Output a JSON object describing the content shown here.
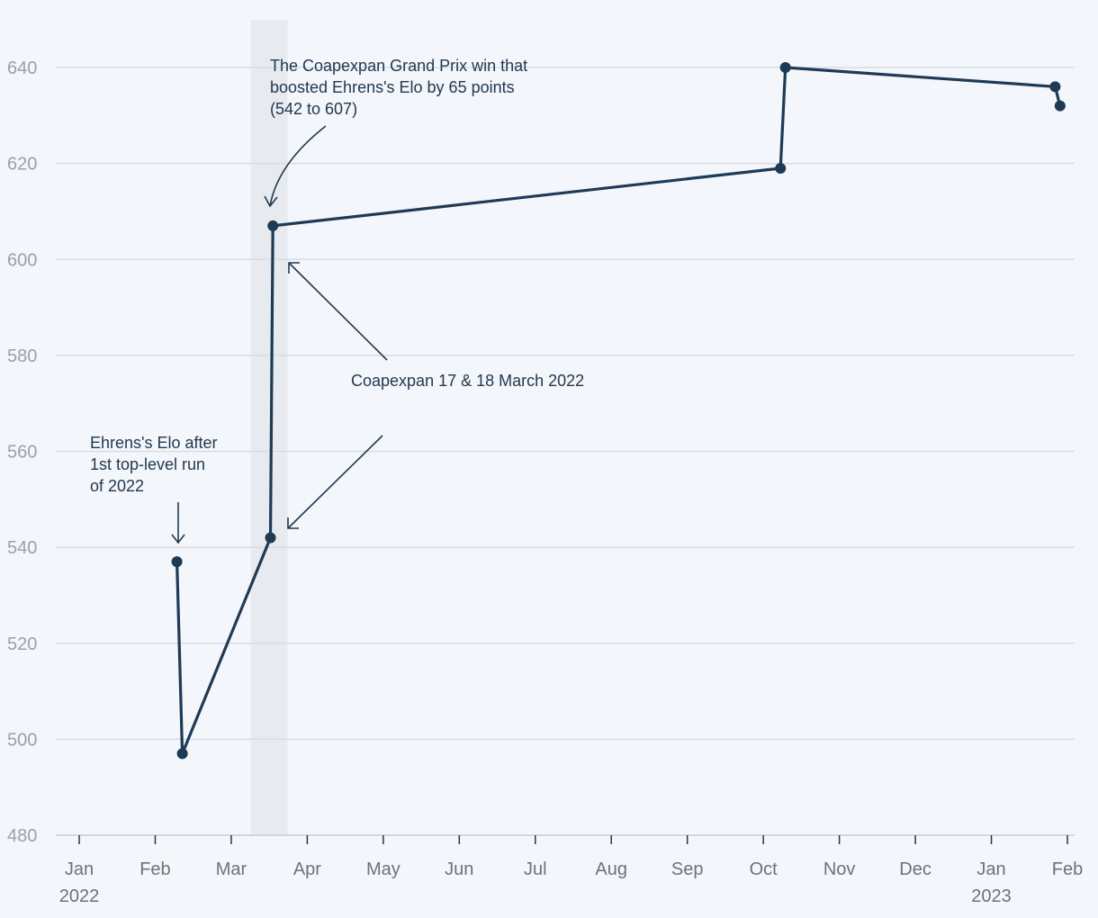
{
  "chart_data": {
    "type": "line",
    "title": "",
    "xlabel": "",
    "ylabel": "",
    "ylim": [
      480,
      650
    ],
    "yticks": [
      480,
      500,
      520,
      540,
      560,
      580,
      600,
      620,
      640
    ],
    "grid": true,
    "colors": {
      "background": "#f3f6fa",
      "line": "#1e3a55",
      "grid": "#d8dde3",
      "highlight_band": "#e7ebef",
      "annotation": "#22384f"
    },
    "xticks": [
      {
        "label": "Jan",
        "sub": "2022"
      },
      {
        "label": "Feb",
        "sub": ""
      },
      {
        "label": "Mar",
        "sub": ""
      },
      {
        "label": "Apr",
        "sub": ""
      },
      {
        "label": "May",
        "sub": ""
      },
      {
        "label": "Jun",
        "sub": ""
      },
      {
        "label": "Jul",
        "sub": ""
      },
      {
        "label": "Aug",
        "sub": ""
      },
      {
        "label": "Sep",
        "sub": ""
      },
      {
        "label": "Oct",
        "sub": ""
      },
      {
        "label": "Nov",
        "sub": ""
      },
      {
        "label": "Dec",
        "sub": ""
      },
      {
        "label": "Jan",
        "sub": "2023"
      },
      {
        "label": "Feb",
        "sub": ""
      }
    ],
    "highlight_band": {
      "start": "2022-03-09",
      "end": "2022-03-24"
    },
    "series": [
      {
        "name": "Ehrens's Elo",
        "points": [
          {
            "date": "2022-02-09",
            "value": 537
          },
          {
            "date": "2022-02-11",
            "value": 497
          },
          {
            "date": "2022-03-17",
            "value": 542
          },
          {
            "date": "2022-03-18",
            "value": 607
          },
          {
            "date": "2022-10-08",
            "value": 619
          },
          {
            "date": "2022-10-10",
            "value": 640
          },
          {
            "date": "2023-01-27",
            "value": 636
          },
          {
            "date": "2023-01-29",
            "value": 632
          }
        ]
      }
    ],
    "annotations": [
      {
        "lines": [
          "The Coapexpan Grand Prix win that",
          "boosted Ehrens's Elo by 65 points",
          "(542 to 607)"
        ],
        "target_point": 3
      },
      {
        "lines": [
          "Coapexpan 17 & 18 March 2022"
        ],
        "target_points": [
          3,
          2
        ]
      },
      {
        "lines": [
          "Ehrens's Elo after",
          "1st top-level run",
          "of 2022"
        ],
        "target_point": 0
      }
    ]
  }
}
